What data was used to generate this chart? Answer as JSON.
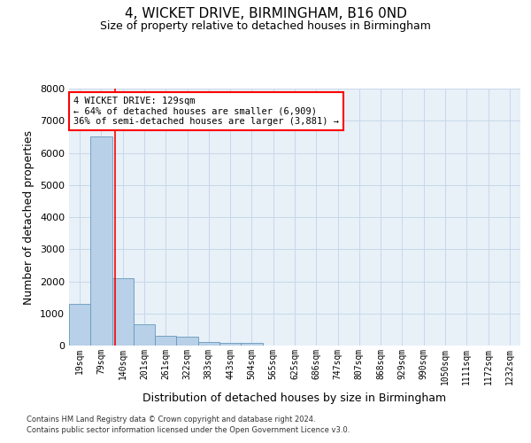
{
  "title": "4, WICKET DRIVE, BIRMINGHAM, B16 0ND",
  "subtitle": "Size of property relative to detached houses in Birmingham",
  "xlabel": "Distribution of detached houses by size in Birmingham",
  "ylabel": "Number of detached properties",
  "bar_color": "#b8d0e8",
  "bar_edge_color": "#6699bb",
  "grid_color": "#c8d8ea",
  "background_color": "#e8f0f8",
  "categories": [
    "19sqm",
    "79sqm",
    "140sqm",
    "201sqm",
    "261sqm",
    "322sqm",
    "383sqm",
    "443sqm",
    "504sqm",
    "565sqm",
    "625sqm",
    "686sqm",
    "747sqm",
    "807sqm",
    "868sqm",
    "929sqm",
    "990sqm",
    "1050sqm",
    "1111sqm",
    "1172sqm",
    "1232sqm"
  ],
  "values": [
    1300,
    6500,
    2100,
    650,
    300,
    280,
    120,
    80,
    80,
    0,
    0,
    0,
    0,
    0,
    0,
    0,
    0,
    0,
    0,
    0,
    0
  ],
  "ylim": [
    0,
    8000
  ],
  "yticks": [
    0,
    1000,
    2000,
    3000,
    4000,
    5000,
    6000,
    7000,
    8000
  ],
  "property_line_x": 1.65,
  "annotation_text": "4 WICKET DRIVE: 129sqm\n← 64% of detached houses are smaller (6,909)\n36% of semi-detached houses are larger (3,881) →",
  "footnote1": "Contains HM Land Registry data © Crown copyright and database right 2024.",
  "footnote2": "Contains public sector information licensed under the Open Government Licence v3.0.",
  "title_fontsize": 11,
  "subtitle_fontsize": 9,
  "tick_fontsize": 7,
  "label_fontsize": 9,
  "annotation_fontsize": 7.5
}
